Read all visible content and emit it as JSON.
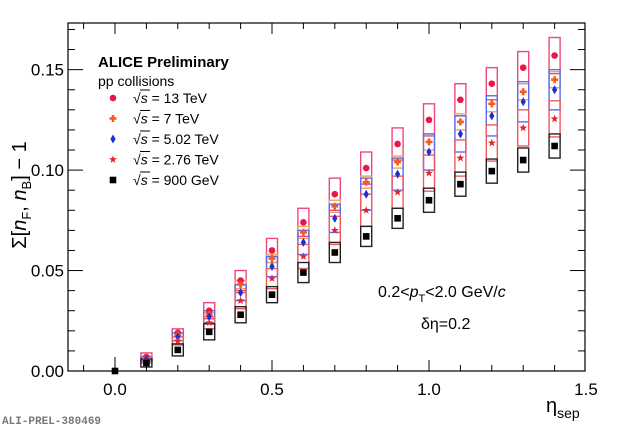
{
  "chart_data": {
    "type": "scatter",
    "title": "",
    "xlabel": "η_sep",
    "ylabel": "Σ[n_F, n_B] − 1",
    "xlim": [
      -0.1,
      1.52
    ],
    "ylim": [
      0.0,
      0.175
    ],
    "x_ticks": [
      "0.0",
      "0.5",
      "1.0",
      "1.5"
    ],
    "y_ticks": [
      "0.00",
      "0.05",
      "0.10",
      "0.15"
    ],
    "legend": {
      "placement": "top-left",
      "title": "ALICE Preliminary",
      "subtitle": "pp collisions"
    },
    "annotations": [
      "0.2<p_T<2.0 GeV/c",
      "δη=0.2"
    ],
    "watermark": "ALI-PREL-380469",
    "series": [
      {
        "name": "√s = 13 TeV",
        "label_sqrt": "√",
        "label_rest": "s = 13 TeV",
        "marker": "circle",
        "color": "#e8174a",
        "box_color": "#f0487a",
        "x": [
          0.1,
          0.2,
          0.3,
          0.4,
          0.5,
          0.6,
          0.7,
          0.8,
          0.9,
          1.0,
          1.1,
          1.2,
          1.3,
          1.4
        ],
        "y": [
          0.007,
          0.019,
          0.03,
          0.045,
          0.06,
          0.074,
          0.088,
          0.101,
          0.113,
          0.125,
          0.135,
          0.143,
          0.151,
          0.157
        ],
        "syst": [
          0.002,
          0.002,
          0.004,
          0.005,
          0.006,
          0.007,
          0.008,
          0.008,
          0.008,
          0.008,
          0.008,
          0.008,
          0.008,
          0.009
        ]
      },
      {
        "name": "√s = 7 TeV",
        "label_sqrt": "√",
        "label_rest": "s = 7 TeV",
        "marker": "cross",
        "color": "#f25c1e",
        "box_color": "#f5a060",
        "x": [
          0.1,
          0.2,
          0.3,
          0.4,
          0.5,
          0.6,
          0.7,
          0.8,
          0.9,
          1.0,
          1.1,
          1.2,
          1.3,
          1.4
        ],
        "y": [
          0.0065,
          0.018,
          0.028,
          0.043,
          0.056,
          0.069,
          0.082,
          0.094,
          0.104,
          0.114,
          0.124,
          0.133,
          0.139,
          0.145
        ],
        "syst": [
          0.001,
          0.001,
          0.001,
          0.002,
          0.002,
          0.003,
          0.003,
          0.003,
          0.003,
          0.004,
          0.004,
          0.004,
          0.004,
          0.004
        ]
      },
      {
        "name": "√s = 5.02 TeV",
        "label_sqrt": "√",
        "label_rest": "s = 5.02 TeV",
        "marker": "diamond",
        "color": "#1a2fd6",
        "box_color": "#5b6cf0",
        "x": [
          0.1,
          0.2,
          0.3,
          0.4,
          0.5,
          0.6,
          0.7,
          0.8,
          0.9,
          1.0,
          1.1,
          1.2,
          1.3,
          1.4
        ],
        "y": [
          0.006,
          0.017,
          0.027,
          0.039,
          0.052,
          0.064,
          0.076,
          0.088,
          0.098,
          0.109,
          0.118,
          0.127,
          0.134,
          0.14
        ],
        "syst": [
          0.001,
          0.002,
          0.003,
          0.004,
          0.005,
          0.006,
          0.007,
          0.008,
          0.008,
          0.009,
          0.009,
          0.01,
          0.01,
          0.01
        ]
      },
      {
        "name": "√s = 2.76 TeV",
        "label_sqrt": "√",
        "label_rest": "s = 2.76 TeV",
        "marker": "star",
        "color": "#e8212a",
        "box_color": "#f05a5e",
        "x": [
          0.1,
          0.2,
          0.3,
          0.4,
          0.5,
          0.6,
          0.7,
          0.8,
          0.9,
          1.0,
          1.1,
          1.2,
          1.3,
          1.4
        ],
        "y": [
          0.005,
          0.015,
          0.024,
          0.035,
          0.046,
          0.057,
          0.07,
          0.08,
          0.089,
          0.0985,
          0.106,
          0.1135,
          0.121,
          0.1255
        ],
        "syst": [
          0.001,
          0.002,
          0.003,
          0.004,
          0.005,
          0.006,
          0.007,
          0.008,
          0.008,
          0.009,
          0.009,
          0.009,
          0.009,
          0.009
        ]
      },
      {
        "name": "√s = 900 GeV",
        "label_sqrt": "√",
        "label_rest": "s = 900 GeV",
        "marker": "square",
        "color": "#000000",
        "box_color": "#222222",
        "x": [
          0.0,
          0.1,
          0.2,
          0.3,
          0.4,
          0.5,
          0.6,
          0.7,
          0.8,
          0.9,
          1.0,
          1.1,
          1.2,
          1.3,
          1.4
        ],
        "y": [
          0.0,
          0.004,
          0.0105,
          0.0195,
          0.028,
          0.038,
          0.049,
          0.059,
          0.067,
          0.076,
          0.085,
          0.093,
          0.0995,
          0.105,
          0.112
        ],
        "syst": [
          0.0,
          0.002,
          0.003,
          0.004,
          0.004,
          0.004,
          0.005,
          0.005,
          0.005,
          0.005,
          0.006,
          0.006,
          0.006,
          0.006,
          0.006
        ]
      }
    ]
  }
}
